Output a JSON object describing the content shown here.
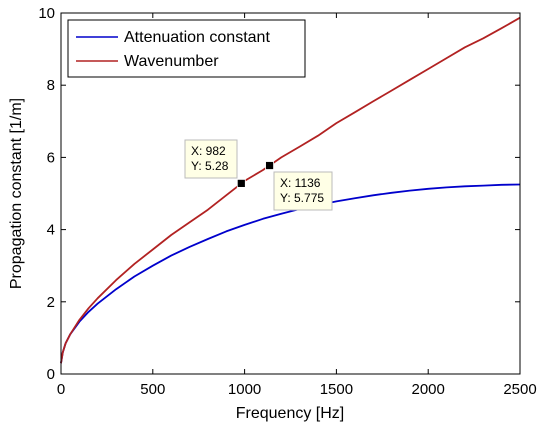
{
  "chart_data": {
    "type": "line",
    "xlabel": "Frequency [Hz]",
    "ylabel": "Propagation constant [1/m]",
    "xlim": [
      0,
      2500
    ],
    "ylim": [
      0,
      10
    ],
    "xticks": [
      "0",
      "500",
      "1000",
      "1500",
      "2000",
      "2500"
    ],
    "yticks": [
      "0",
      "2",
      "4",
      "6",
      "8",
      "10"
    ],
    "grid": false,
    "legend_position": "top-left",
    "series": [
      {
        "name": "Attenuation constant",
        "color": "#0000cc",
        "x": [
          0,
          10,
          25,
          50,
          100,
          150,
          200,
          300,
          400,
          500,
          600,
          700,
          800,
          900,
          1000,
          1100,
          1200,
          1300,
          1400,
          1500,
          1600,
          1700,
          1800,
          1900,
          2000,
          2100,
          2200,
          2300,
          2400,
          2500
        ],
        "y": [
          0.3,
          0.6,
          0.85,
          1.1,
          1.45,
          1.72,
          1.95,
          2.35,
          2.7,
          3.0,
          3.28,
          3.52,
          3.74,
          3.95,
          4.13,
          4.3,
          4.44,
          4.57,
          4.68,
          4.78,
          4.87,
          4.95,
          5.02,
          5.08,
          5.13,
          5.17,
          5.2,
          5.22,
          5.24,
          5.25
        ]
      },
      {
        "name": "Wavenumber",
        "color": "#b22222",
        "x": [
          0,
          10,
          25,
          50,
          100,
          150,
          200,
          300,
          400,
          500,
          600,
          700,
          800,
          900,
          1000,
          1100,
          1200,
          1300,
          1400,
          1500,
          1600,
          1700,
          1800,
          1900,
          2000,
          2100,
          2200,
          2300,
          2400,
          2500
        ],
        "y": [
          0.3,
          0.6,
          0.85,
          1.1,
          1.5,
          1.82,
          2.1,
          2.6,
          3.05,
          3.45,
          3.85,
          4.2,
          4.55,
          4.95,
          5.35,
          5.65,
          6.0,
          6.3,
          6.6,
          6.95,
          7.25,
          7.55,
          7.85,
          8.15,
          8.45,
          8.75,
          9.05,
          9.3,
          9.58,
          9.87
        ]
      }
    ],
    "datatips": [
      {
        "x": 982,
        "y": 5.28,
        "label_x": "X: 982",
        "label_y": "Y: 5.28"
      },
      {
        "x": 1136,
        "y": 5.775,
        "label_x": "X: 1136",
        "label_y": "Y: 5.775"
      }
    ]
  }
}
